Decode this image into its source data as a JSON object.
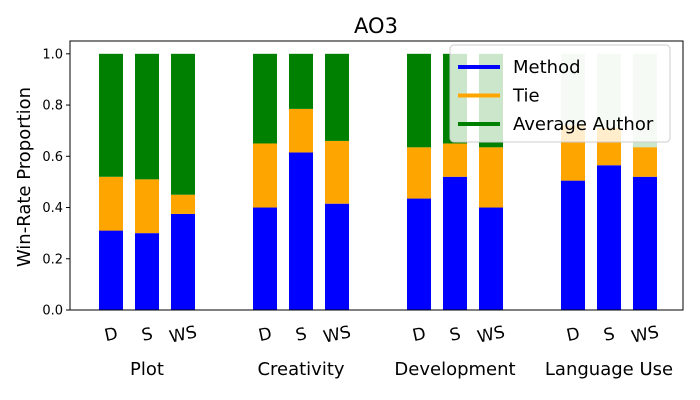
{
  "chart_data": {
    "type": "bar",
    "stacked": true,
    "title": "AO3",
    "ylabel": "Win-Rate Proportion",
    "xlabel": "",
    "ylim": [
      0,
      1.05
    ],
    "yticks": [
      "0.0",
      "0.2",
      "0.4",
      "0.6",
      "0.8",
      "1.0"
    ],
    "groups": [
      "Plot",
      "Creativity",
      "Development",
      "Language Use"
    ],
    "categories": [
      "D",
      "S",
      "WS"
    ],
    "series": [
      {
        "name": "Method",
        "color": "#0000ff",
        "values": [
          [
            0.31,
            0.3,
            0.375
          ],
          [
            0.4,
            0.615,
            0.415
          ],
          [
            0.435,
            0.52,
            0.4
          ],
          [
            0.505,
            0.565,
            0.52
          ]
        ]
      },
      {
        "name": "Tie",
        "color": "#ffa500",
        "values": [
          [
            0.21,
            0.21,
            0.075
          ],
          [
            0.25,
            0.17,
            0.245
          ],
          [
            0.2,
            0.13,
            0.235
          ],
          [
            0.215,
            0.145,
            0.115
          ]
        ]
      },
      {
        "name": "Average Author",
        "color": "#008000",
        "values": [
          [
            0.48,
            0.49,
            0.55
          ],
          [
            0.35,
            0.215,
            0.34
          ],
          [
            0.365,
            0.35,
            0.365
          ],
          [
            0.28,
            0.29,
            0.365
          ]
        ]
      }
    ],
    "legend": {
      "position": "top-right",
      "entries": [
        "Method",
        "Tie",
        "Average Author"
      ]
    },
    "grid": false
  }
}
